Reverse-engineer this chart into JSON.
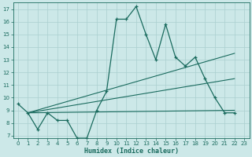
{
  "xlabel": "Humidex (Indice chaleur)",
  "bg_color": "#cce8e8",
  "line_color": "#1a6b5e",
  "grid_color": "#aacfcf",
  "xlim": [
    -0.5,
    23.5
  ],
  "ylim": [
    6.8,
    17.5
  ],
  "xticks": [
    0,
    1,
    2,
    3,
    4,
    5,
    6,
    7,
    8,
    9,
    10,
    11,
    12,
    13,
    14,
    15,
    16,
    17,
    18,
    19,
    20,
    21,
    22,
    23
  ],
  "yticks": [
    7,
    8,
    9,
    10,
    11,
    12,
    13,
    14,
    15,
    16,
    17
  ],
  "curve_x": [
    0,
    1,
    2,
    3,
    4,
    5,
    6,
    7,
    8,
    9,
    10,
    11,
    12,
    13,
    14,
    15,
    16,
    17,
    18,
    19,
    20,
    21,
    22
  ],
  "curve_y": [
    9.5,
    8.8,
    7.5,
    8.8,
    8.2,
    8.2,
    6.8,
    6.8,
    9.0,
    10.5,
    16.2,
    16.2,
    17.2,
    15.0,
    13.0,
    15.8,
    13.2,
    12.5,
    13.2,
    11.5,
    10.0,
    8.8,
    8.8
  ],
  "line1_x": [
    1,
    22
  ],
  "line1_y": [
    8.8,
    9.0
  ],
  "line2_x": [
    1,
    22
  ],
  "line2_y": [
    8.8,
    11.5
  ],
  "line3_x": [
    1,
    22
  ],
  "line3_y": [
    8.8,
    13.5
  ]
}
